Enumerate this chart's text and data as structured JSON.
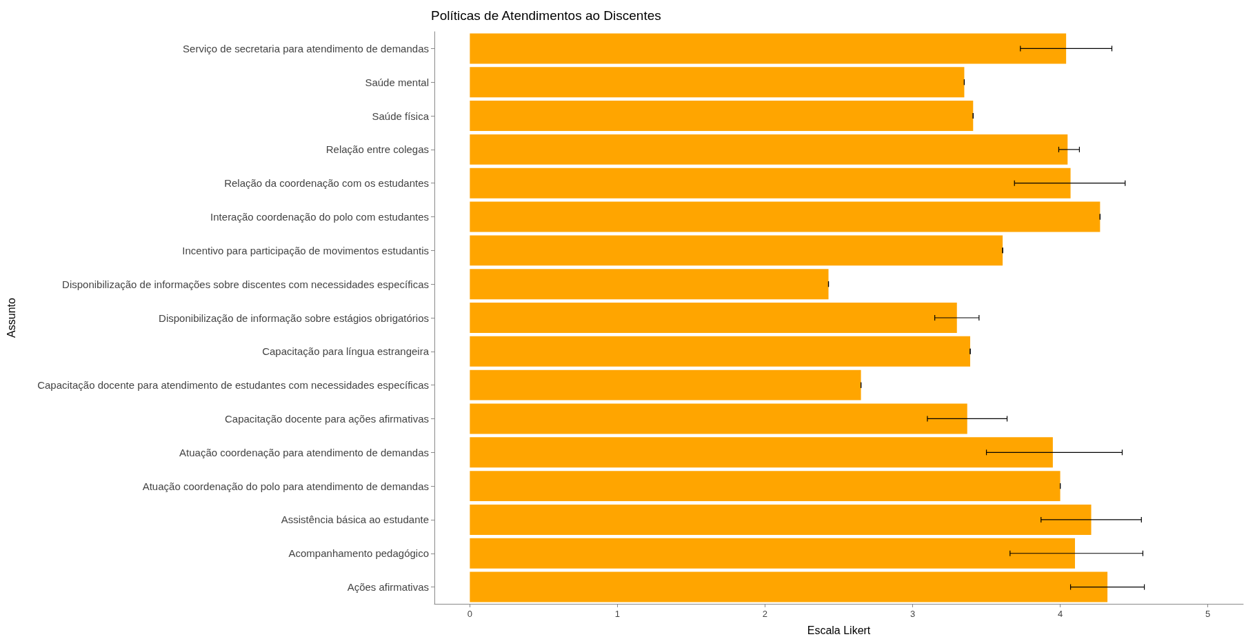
{
  "chart_data": {
    "type": "bar",
    "orientation": "horizontal",
    "title": "Políticas de Atendimentos ao Discentes",
    "xlabel": "Escala Likert",
    "ylabel": "Assunto",
    "categories": [
      "Serviço de secretaria para atendimento de demandas",
      "Saúde mental",
      "Saúde física",
      "Relação entre colegas",
      "Relação da coordenação com os estudantes",
      "Interação coordenação do polo com estudantes",
      "Incentivo para participação de movimentos estudantis",
      "Disponibilização de informações sobre discentes com necessidades específicas",
      "Disponibilização de informação sobre estágios obrigatórios",
      "Capacitação para língua estrangeira",
      "Capacitação docente para atendimento de estudantes com necessidades específicas",
      "Capacitação docente para ações afirmativas",
      "Atuação coordenação para atendimento de demandas",
      "Atuação coordenação do polo para atendimento de demandas",
      "Assistência básica ao estudante",
      "Acompanhamento pedagógico",
      "Ações afirmativas"
    ],
    "values": [
      4.04,
      3.35,
      3.41,
      4.05,
      4.07,
      4.27,
      3.61,
      2.43,
      3.3,
      3.39,
      2.65,
      3.37,
      3.95,
      4.0,
      4.21,
      4.1,
      4.32
    ],
    "errors": [
      [
        3.73,
        4.35
      ],
      0,
      0,
      [
        3.99,
        4.13
      ],
      [
        3.69,
        4.44
      ],
      0,
      0,
      0,
      [
        3.15,
        3.45
      ],
      0,
      0,
      [
        3.1,
        3.64
      ],
      [
        3.5,
        4.42
      ],
      0,
      [
        3.87,
        4.55
      ],
      [
        3.66,
        4.56
      ],
      [
        4.07,
        4.57
      ]
    ],
    "color": "#ffa500",
    "xlim": [
      -0.24,
      5.24
    ],
    "xticks": [
      0,
      1,
      2,
      3,
      4,
      5
    ],
    "grid": false
  }
}
